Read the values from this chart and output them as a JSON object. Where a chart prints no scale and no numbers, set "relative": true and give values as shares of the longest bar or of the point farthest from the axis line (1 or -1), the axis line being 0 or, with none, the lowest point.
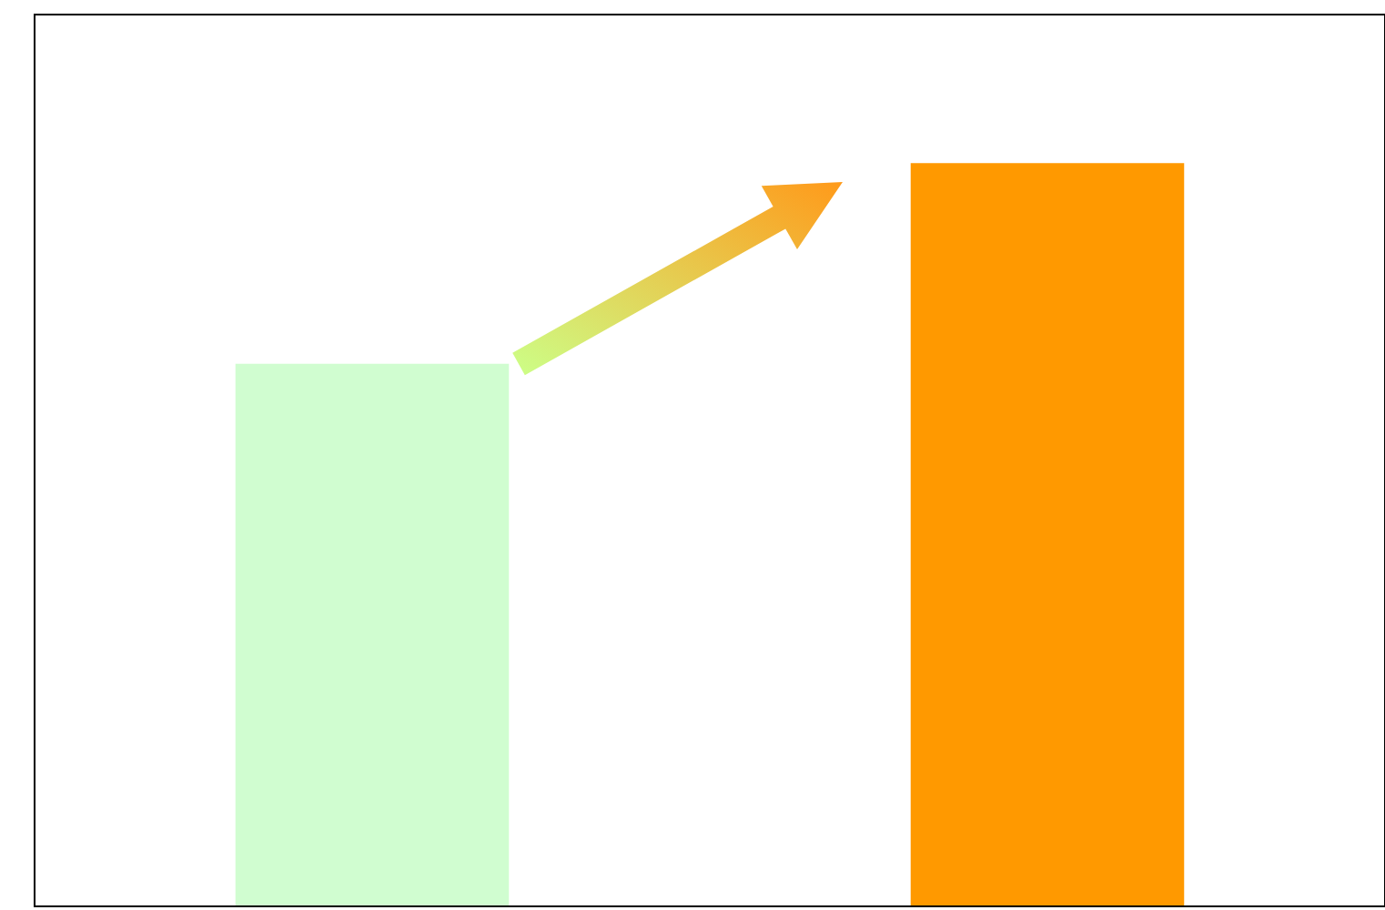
{
  "chart_data": {
    "type": "bar",
    "relative": true,
    "categories": [
      null,
      null
    ],
    "values": [
      0.73,
      1
    ],
    "colors": [
      "#d0fdd0",
      "#ff9900"
    ],
    "legend": false
  }
}
